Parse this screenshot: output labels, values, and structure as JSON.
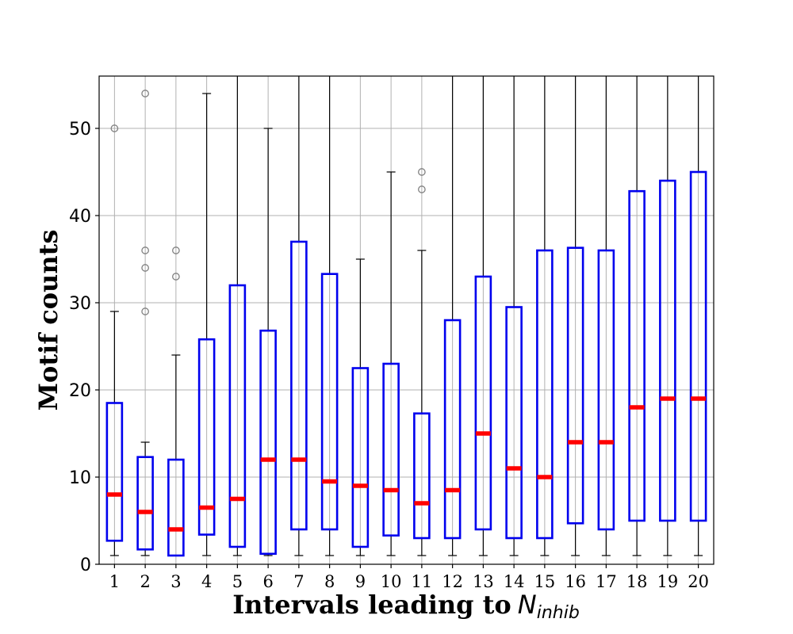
{
  "chart_data": {
    "type": "box",
    "title": "",
    "xlabel": "Intervals leading to",
    "xlabel_symbol": "N",
    "xlabel_subscript": "inhib",
    "ylabel": "Motif counts",
    "ylim": [
      0,
      56
    ],
    "yticks": [
      0,
      10,
      20,
      30,
      40,
      50
    ],
    "grid": true,
    "colors": {
      "box": "#0000ee",
      "median": "#ff0000",
      "whisker": "#000000",
      "outlier": "#808080",
      "grid": "#b0b0b0"
    },
    "categories": [
      "1",
      "2",
      "3",
      "4",
      "5",
      "6",
      "7",
      "8",
      "9",
      "10",
      "11",
      "12",
      "13",
      "14",
      "15",
      "16",
      "17",
      "18",
      "19",
      "20"
    ],
    "boxes": [
      {
        "q1": 2.7,
        "median": 8,
        "q3": 18.5,
        "whisker_low": 1,
        "whisker_high": 29,
        "outliers": [
          50
        ]
      },
      {
        "q1": 1.7,
        "median": 6,
        "q3": 12.3,
        "whisker_low": 1,
        "whisker_high": 14,
        "outliers": [
          29,
          34,
          36,
          54
        ]
      },
      {
        "q1": 1,
        "median": 4,
        "q3": 12,
        "whisker_low": 1,
        "whisker_high": 24,
        "outliers": [
          33,
          36
        ]
      },
      {
        "q1": 3.4,
        "median": 6.5,
        "q3": 25.8,
        "whisker_low": 1,
        "whisker_high": 54,
        "outliers": []
      },
      {
        "q1": 2,
        "median": 7.5,
        "q3": 32,
        "whisker_low": 1,
        "whisker_high": 60,
        "outliers": []
      },
      {
        "q1": 1.2,
        "median": 12,
        "q3": 26.8,
        "whisker_low": 1,
        "whisker_high": 50,
        "outliers": []
      },
      {
        "q1": 4,
        "median": 12,
        "q3": 37,
        "whisker_low": 1,
        "whisker_high": 60,
        "outliers": []
      },
      {
        "q1": 4,
        "median": 9.5,
        "q3": 33.3,
        "whisker_low": 1,
        "whisker_high": 60,
        "outliers": []
      },
      {
        "q1": 2,
        "median": 9,
        "q3": 22.5,
        "whisker_low": 1,
        "whisker_high": 35,
        "outliers": []
      },
      {
        "q1": 3.3,
        "median": 8.5,
        "q3": 23,
        "whisker_low": 1,
        "whisker_high": 45,
        "outliers": []
      },
      {
        "q1": 3,
        "median": 7,
        "q3": 17.3,
        "whisker_low": 1,
        "whisker_high": 36,
        "outliers": [
          43,
          45
        ]
      },
      {
        "q1": 3,
        "median": 8.5,
        "q3": 28,
        "whisker_low": 1,
        "whisker_high": 60,
        "outliers": []
      },
      {
        "q1": 4,
        "median": 15,
        "q3": 33,
        "whisker_low": 1,
        "whisker_high": 60,
        "outliers": []
      },
      {
        "q1": 3,
        "median": 11,
        "q3": 29.5,
        "whisker_low": 1,
        "whisker_high": 60,
        "outliers": []
      },
      {
        "q1": 3,
        "median": 10,
        "q3": 36,
        "whisker_low": 1,
        "whisker_high": 60,
        "outliers": []
      },
      {
        "q1": 4.7,
        "median": 14,
        "q3": 36.3,
        "whisker_low": 1,
        "whisker_high": 60,
        "outliers": []
      },
      {
        "q1": 4,
        "median": 14,
        "q3": 36,
        "whisker_low": 1,
        "whisker_high": 60,
        "outliers": []
      },
      {
        "q1": 5,
        "median": 18,
        "q3": 42.8,
        "whisker_low": 1,
        "whisker_high": 60,
        "outliers": []
      },
      {
        "q1": 5,
        "median": 19,
        "q3": 44,
        "whisker_low": 1,
        "whisker_high": 60,
        "outliers": []
      },
      {
        "q1": 5,
        "median": 19,
        "q3": 45,
        "whisker_low": 1,
        "whisker_high": 60,
        "outliers": []
      }
    ]
  }
}
